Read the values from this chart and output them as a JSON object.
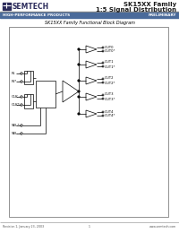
{
  "title_line1": "SK15XX Family",
  "title_line2": "1:5 Signal Distribution",
  "company": "SEMTECH",
  "banner_text": "HIGH-PERFORMANCE PRODUCTS",
  "banner_right": "PRELIMINARY",
  "diagram_title": "SK15XX Family Functional Block Diagram",
  "footer_left": "Revision 1, January 23, 2003",
  "footer_center": "1",
  "footer_right": "www.semtech.com",
  "outputs": [
    [
      "OUT0",
      "OUT0*"
    ],
    [
      "OUT1",
      "OUT1*"
    ],
    [
      "OUT2",
      "OUT2*"
    ],
    [
      "OUT3",
      "OUT3*"
    ],
    [
      "OUT4",
      "OUT4*"
    ]
  ],
  "bg_color": "#ffffff",
  "header_top_color": "#ffffff",
  "header_bot_color": "#4a6a9a",
  "text_color": "#000000"
}
